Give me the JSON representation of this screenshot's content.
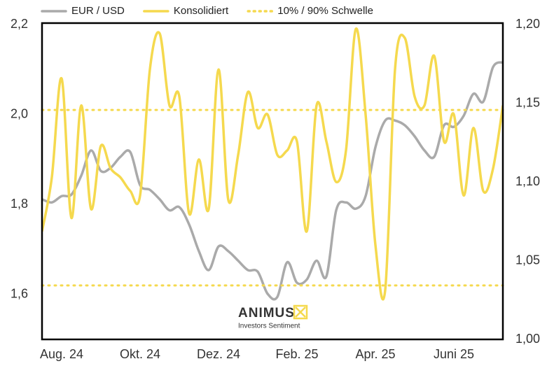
{
  "chart_data": {
    "type": "line",
    "x": [
      null,
      null,
      "Aug. 24",
      null,
      null,
      null,
      null,
      null,
      null,
      null,
      "Okt. 24",
      null,
      null,
      null,
      null,
      null,
      null,
      null,
      "Dez. 24",
      null,
      null,
      null,
      null,
      null,
      null,
      null,
      "Feb. 25",
      null,
      null,
      null,
      null,
      null,
      null,
      null,
      "Apr. 25",
      null,
      null,
      null,
      null,
      null,
      null,
      null,
      "Juni 25",
      null,
      null,
      null,
      null,
      null
    ],
    "series": [
      {
        "name": "EUR / USD",
        "color": "#aaaaaa",
        "axis": "y2",
        "values": [
          1.089,
          1.087,
          1.091,
          1.092,
          1.104,
          1.12,
          1.107,
          1.109,
          1.116,
          1.119,
          1.098,
          1.095,
          1.089,
          1.082,
          1.084,
          1.073,
          1.056,
          1.044,
          1.059,
          1.056,
          1.05,
          1.044,
          1.043,
          1.029,
          1.027,
          1.049,
          1.036,
          1.038,
          1.05,
          1.04,
          1.082,
          1.087,
          1.083,
          1.091,
          1.122,
          1.139,
          1.139,
          1.136,
          1.129,
          1.12,
          1.116,
          1.136,
          1.135,
          1.142,
          1.156,
          1.151,
          1.173,
          1.176
        ]
      },
      {
        "name": "Konsolidiert",
        "color": "#f5d94e",
        "values": [
          1.74,
          1.86,
          2.08,
          1.77,
          2.02,
          1.79,
          1.93,
          1.88,
          1.86,
          1.83,
          1.82,
          2.1,
          2.18,
          2.02,
          2.04,
          1.78,
          1.9,
          1.79,
          2.1,
          1.81,
          1.91,
          2.05,
          1.97,
          2.0,
          1.91,
          1.92,
          1.94,
          1.74,
          2.02,
          1.94,
          1.85,
          1.92,
          2.19,
          2.0,
          1.71,
          1.61,
          2.1,
          2.17,
          2.04,
          2.02,
          2.13,
          1.94,
          2.0,
          1.82,
          1.97,
          1.83,
          1.88,
          2.02
        ]
      },
      {
        "name": "10% / 90% Schwelle",
        "color": "#f5d94e",
        "style": "dotted",
        "levels": [
          1.62,
          2.01
        ]
      }
    ],
    "ylim": [
      1.5,
      2.2
    ],
    "yticks": [
      {
        "value": 1.6,
        "label": "1,6"
      },
      {
        "value": 1.8,
        "label": "1,8"
      },
      {
        "value": 2.0,
        "label": "2,0"
      },
      {
        "value": 2.2,
        "label": "2,2"
      }
    ],
    "y2lim": [
      1.0,
      1.2
    ],
    "y2ticks": [
      {
        "value": 1.0,
        "label": "1,00"
      },
      {
        "value": 1.05,
        "label": "1,05"
      },
      {
        "value": 1.1,
        "label": "1,10"
      },
      {
        "value": 1.15,
        "label": "1,15"
      },
      {
        "value": 1.2,
        "label": "1,20"
      }
    ],
    "watermark": {
      "brand": "ANIMUS",
      "tagline": "Investors Sentiment"
    }
  }
}
